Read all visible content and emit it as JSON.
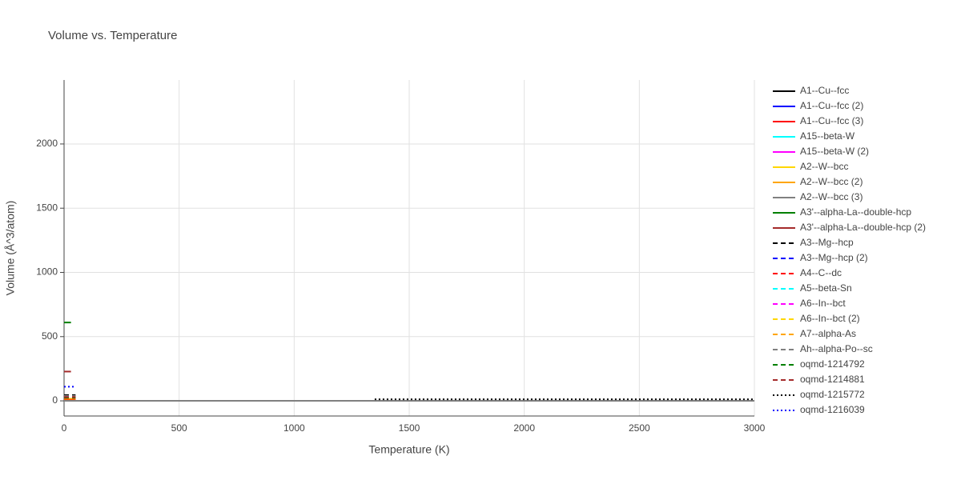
{
  "chart_data": {
    "type": "line",
    "title": "Volume vs. Temperature",
    "x_label": "Temperature (K)",
    "y_label": "Volume (Å^3/atom)",
    "xlim": [
      0,
      3000
    ],
    "ylim": [
      -118,
      2498
    ],
    "xticks": [
      0,
      500,
      1000,
      1500,
      2000,
      2500,
      3000
    ],
    "yticks": [
      0,
      500,
      1000,
      1500,
      2000
    ],
    "grid": true,
    "series": [
      {
        "name": "A1--Cu--fcc",
        "color": "#000000",
        "dash": "solid",
        "x": [
          0,
          50
        ],
        "values": [
          12,
          12
        ]
      },
      {
        "name": "A1--Cu--fcc (2)",
        "color": "#0000ff",
        "dash": "solid",
        "x": [
          0,
          50
        ],
        "values": [
          12,
          12
        ]
      },
      {
        "name": "A1--Cu--fcc (3)",
        "color": "#ff0000",
        "dash": "solid",
        "x": [
          0,
          50
        ],
        "values": [
          12,
          12
        ]
      },
      {
        "name": "A15--beta-W",
        "color": "#00ffff",
        "dash": "solid",
        "x": [
          0,
          50
        ],
        "values": [
          16,
          16
        ]
      },
      {
        "name": "A15--beta-W (2)",
        "color": "#ff00ff",
        "dash": "solid",
        "x": [
          0,
          50
        ],
        "values": [
          16,
          16
        ]
      },
      {
        "name": "A2--W--bcc",
        "color": "#ffd700",
        "dash": "solid",
        "x": [
          0,
          50
        ],
        "values": [
          16,
          16
        ]
      },
      {
        "name": "A2--W--bcc (2)",
        "color": "#ffa500",
        "dash": "solid",
        "x": [
          0,
          50
        ],
        "values": [
          16,
          16
        ]
      },
      {
        "name": "A2--W--bcc (3)",
        "color": "#808080",
        "dash": "solid",
        "x": [
          0,
          3000
        ],
        "values": [
          0,
          0
        ]
      },
      {
        "name": "A3'--alpha-La--double-hcp",
        "color": "#008000",
        "dash": "solid",
        "x": [
          0,
          30
        ],
        "values": [
          610,
          610
        ]
      },
      {
        "name": "A3'--alpha-La--double-hcp (2)",
        "color": "#a52a2a",
        "dash": "solid",
        "x": [
          0,
          30
        ],
        "values": [
          228,
          228
        ]
      },
      {
        "name": "A3--Mg--hcp",
        "color": "#000000",
        "dash": "dash",
        "x": [
          0,
          50
        ],
        "values": [
          45,
          45
        ]
      },
      {
        "name": "A3--Mg--hcp (2)",
        "color": "#0000ff",
        "dash": "dash",
        "x": [
          0,
          50
        ],
        "values": [
          23,
          23
        ]
      },
      {
        "name": "A4--C--dc",
        "color": "#ff0000",
        "dash": "dash",
        "x": [
          0,
          50
        ],
        "values": [
          20,
          20
        ]
      },
      {
        "name": "A5--beta-Sn",
        "color": "#00ffff",
        "dash": "dash",
        "x": [
          0,
          50
        ],
        "values": [
          27,
          27
        ]
      },
      {
        "name": "A6--In--bct",
        "color": "#ff00ff",
        "dash": "dash",
        "x": [
          0,
          50
        ],
        "values": [
          28,
          28
        ]
      },
      {
        "name": "A6--In--bct (2)",
        "color": "#ffd700",
        "dash": "dash",
        "x": [
          0,
          50
        ],
        "values": [
          28,
          28
        ]
      },
      {
        "name": "A7--alpha-As",
        "color": "#ffa500",
        "dash": "dash",
        "x": [
          0,
          50
        ],
        "values": [
          22,
          22
        ]
      },
      {
        "name": "Ah--alpha-Po--sc",
        "color": "#808080",
        "dash": "dash",
        "x": [
          0,
          50
        ],
        "values": [
          38,
          38
        ]
      },
      {
        "name": "oqmd-1214792",
        "color": "#008000",
        "dash": "dash",
        "x": [
          0,
          50
        ],
        "values": [
          25,
          25
        ]
      },
      {
        "name": "oqmd-1214881",
        "color": "#a52a2a",
        "dash": "dash",
        "x": [
          0,
          50
        ],
        "values": [
          30,
          30
        ]
      },
      {
        "name": "oqmd-1215772",
        "color": "#000000",
        "dash": "dot",
        "x": [
          1350,
          3000
        ],
        "values": [
          12,
          12
        ]
      },
      {
        "name": "oqmd-1216039",
        "color": "#0000ff",
        "dash": "dot",
        "x": [
          0,
          50
        ],
        "values": [
          110,
          110
        ]
      }
    ]
  }
}
